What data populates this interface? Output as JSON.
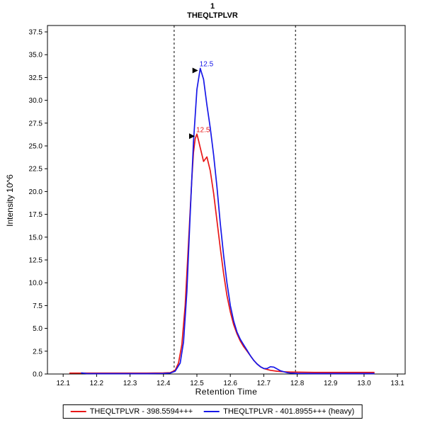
{
  "title": {
    "line1": "1",
    "line2": "THEQLTPLVR"
  },
  "axes": {
    "x_label": "Retention Time",
    "y_label": "Intensity 10^6"
  },
  "legend": [
    {
      "label": "THEQLTPLVR - 398.5594+++",
      "color": "#e81717"
    },
    {
      "label": "THEQLTPLVR - 401.8955+++ (heavy)",
      "color": "#1717e8"
    }
  ],
  "chart_data": {
    "type": "line",
    "title": "1 THEQLTPLVR",
    "xlabel": "Retention Time",
    "ylabel": "Intensity 10^6",
    "xlim": [
      12.053,
      13.123
    ],
    "ylim": [
      0,
      38.2
    ],
    "x_ticks": [
      12.1,
      12.2,
      12.3,
      12.4,
      12.5,
      12.6,
      12.7,
      12.8,
      12.9,
      13.0,
      13.1
    ],
    "y_ticks": [
      0.0,
      2.5,
      5.0,
      7.5,
      10.0,
      12.5,
      15.0,
      17.5,
      20.0,
      22.5,
      25.0,
      27.5,
      30.0,
      32.5,
      35.0,
      37.5
    ],
    "grid": false,
    "legend_position": "bottom",
    "boundaries": [
      12.432,
      12.795
    ],
    "series": [
      {
        "name": "THEQLTPLVR - 398.5594+++",
        "color": "#e81717",
        "peak_rt": 12.5,
        "peak_intensity": 26.3,
        "points": [
          [
            12.12,
            0.1
          ],
          [
            12.15,
            0.1
          ],
          [
            12.2,
            0.1
          ],
          [
            12.25,
            0.1
          ],
          [
            12.3,
            0.1
          ],
          [
            12.35,
            0.1
          ],
          [
            12.4,
            0.12
          ],
          [
            12.42,
            0.15
          ],
          [
            12.435,
            0.4
          ],
          [
            12.445,
            1.2
          ],
          [
            12.455,
            3.2
          ],
          [
            12.465,
            7.5
          ],
          [
            12.475,
            14.5
          ],
          [
            12.485,
            21.5
          ],
          [
            12.49,
            24.3
          ],
          [
            12.495,
            25.8
          ],
          [
            12.5,
            26.3
          ],
          [
            12.505,
            25.6
          ],
          [
            12.51,
            24.8
          ],
          [
            12.52,
            23.3
          ],
          [
            12.53,
            23.8
          ],
          [
            12.54,
            22.3
          ],
          [
            12.55,
            19.8
          ],
          [
            12.56,
            16.8
          ],
          [
            12.57,
            13.8
          ],
          [
            12.58,
            11.0
          ],
          [
            12.59,
            8.6
          ],
          [
            12.6,
            6.8
          ],
          [
            12.61,
            5.4
          ],
          [
            12.62,
            4.4
          ],
          [
            12.63,
            3.6
          ],
          [
            12.64,
            3.0
          ],
          [
            12.65,
            2.5
          ],
          [
            12.66,
            2.0
          ],
          [
            12.67,
            1.5
          ],
          [
            12.68,
            1.1
          ],
          [
            12.69,
            0.8
          ],
          [
            12.7,
            0.6
          ],
          [
            12.72,
            0.4
          ],
          [
            12.74,
            0.3
          ],
          [
            12.76,
            0.25
          ],
          [
            12.78,
            0.22
          ],
          [
            12.8,
            0.2
          ],
          [
            12.85,
            0.18
          ],
          [
            12.9,
            0.18
          ],
          [
            12.95,
            0.18
          ],
          [
            13.0,
            0.18
          ],
          [
            13.03,
            0.18
          ]
        ]
      },
      {
        "name": "THEQLTPLVR - 401.8955+++ (heavy)",
        "color": "#1717e8",
        "peak_rt": 12.5,
        "peak_intensity": 33.5,
        "points": [
          [
            12.155,
            0.12
          ],
          [
            12.17,
            0.05
          ],
          [
            12.2,
            0.04
          ],
          [
            12.25,
            0.04
          ],
          [
            12.3,
            0.04
          ],
          [
            12.35,
            0.04
          ],
          [
            12.4,
            0.06
          ],
          [
            12.42,
            0.1
          ],
          [
            12.435,
            0.3
          ],
          [
            12.45,
            1.2
          ],
          [
            12.46,
            3.5
          ],
          [
            12.47,
            9.0
          ],
          [
            12.48,
            17.5
          ],
          [
            12.49,
            25.5
          ],
          [
            12.5,
            31.2
          ],
          [
            12.51,
            33.5
          ],
          [
            12.52,
            32.3
          ],
          [
            12.53,
            29.5
          ],
          [
            12.54,
            27.0
          ],
          [
            12.55,
            24.0
          ],
          [
            12.56,
            20.5
          ],
          [
            12.57,
            16.5
          ],
          [
            12.58,
            13.0
          ],
          [
            12.59,
            10.0
          ],
          [
            12.6,
            7.5
          ],
          [
            12.61,
            5.8
          ],
          [
            12.62,
            4.6
          ],
          [
            12.63,
            3.8
          ],
          [
            12.64,
            3.2
          ],
          [
            12.65,
            2.6
          ],
          [
            12.66,
            2.0
          ],
          [
            12.67,
            1.5
          ],
          [
            12.68,
            1.1
          ],
          [
            12.69,
            0.8
          ],
          [
            12.7,
            0.6
          ],
          [
            12.71,
            0.6
          ],
          [
            12.72,
            0.8
          ],
          [
            12.73,
            0.75
          ],
          [
            12.74,
            0.55
          ],
          [
            12.75,
            0.35
          ],
          [
            12.76,
            0.25
          ],
          [
            12.77,
            0.15
          ],
          [
            12.78,
            0.1
          ],
          [
            12.8,
            0.07
          ],
          [
            12.85,
            0.05
          ],
          [
            12.9,
            0.05
          ],
          [
            12.95,
            0.05
          ],
          [
            13.0,
            0.05
          ],
          [
            13.03,
            0.05
          ]
        ]
      }
    ],
    "annotations": [
      {
        "text": "12.5",
        "color": "#1717e8",
        "x": 12.51,
        "y": 33.5
      },
      {
        "text": "12.5",
        "color": "#e81717",
        "x": 12.5,
        "y": 26.3
      }
    ]
  }
}
